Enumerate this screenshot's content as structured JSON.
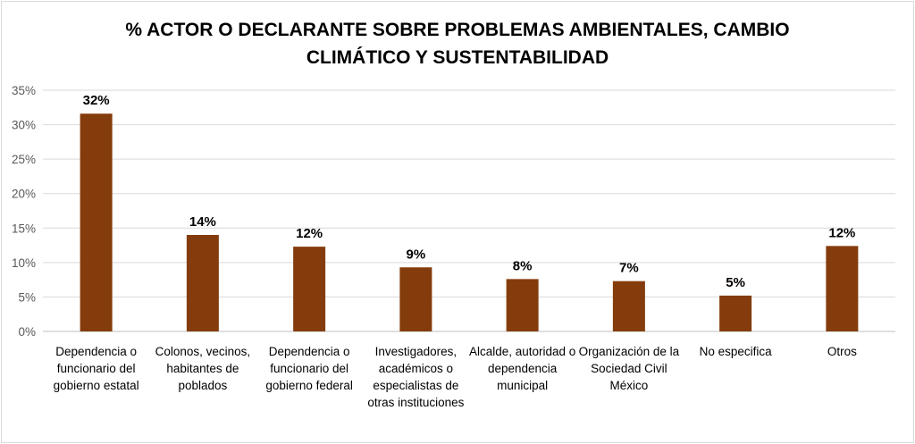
{
  "chart_data": {
    "type": "bar",
    "title": "% ACTOR O DECLARANTE SOBRE PROBLEMAS AMBIENTALES, CAMBIO CLIMÁTICO Y SUSTENTABILIDAD",
    "title_lines": [
      "% ACTOR O DECLARANTE SOBRE PROBLEMAS AMBIENTALES, CAMBIO",
      "CLIMÁTICO Y SUSTENTABILIDAD"
    ],
    "categories": [
      "Dependencia o funcionario del gobierno estatal",
      "Colonos, vecinos, habitantes de poblados",
      "Dependencia o funcionario del gobierno federal",
      "Investigadores, académicos o especialistas de otras instituciones",
      "Alcalde, autoridad o dependencia municipal",
      "Organización de la Sociedad Civil México",
      "No especifica",
      "Otros"
    ],
    "values": [
      31.6,
      14.0,
      12.3,
      9.3,
      7.6,
      7.3,
      5.2,
      12.4
    ],
    "data_labels": [
      "32%",
      "14%",
      "12%",
      "9%",
      "8%",
      "7%",
      "5%",
      "12%"
    ],
    "yticks": [
      "0%",
      "5%",
      "10%",
      "15%",
      "20%",
      "25%",
      "30%",
      "35%"
    ],
    "ylim": [
      0,
      35
    ],
    "xlabel": "",
    "ylabel": "",
    "grid": true,
    "legend": "none",
    "bar_color": "#843C0C"
  }
}
